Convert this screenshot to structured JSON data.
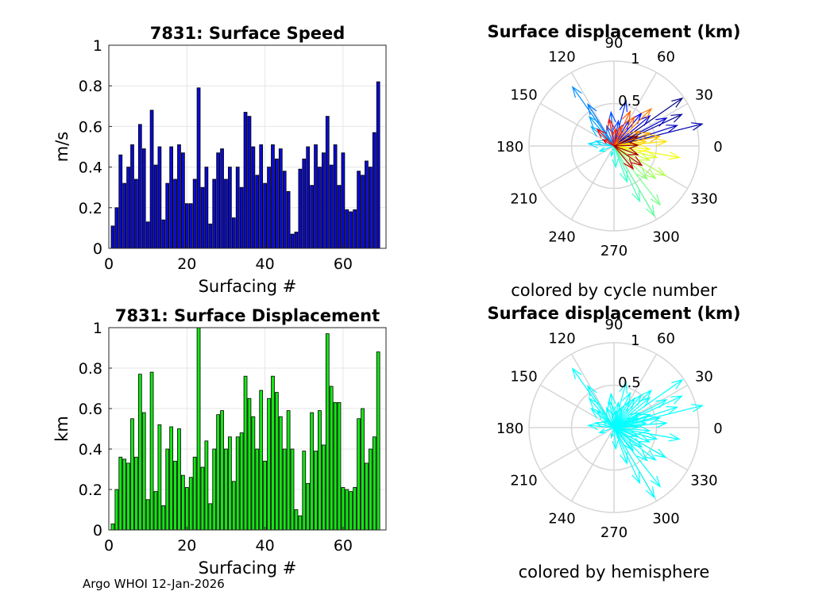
{
  "footer": "Argo WHOI 12-Jan-2026",
  "chart_data": [
    {
      "type": "bar",
      "title": "7831: Surface Speed",
      "xlabel": "Surfacing #",
      "ylabel": "m/s",
      "xlim": [
        0,
        71
      ],
      "ylim": [
        0,
        1
      ],
      "xticks": [
        "0",
        "20",
        "40",
        "60"
      ],
      "yticks": [
        "0",
        "0.2",
        "0.4",
        "0.6",
        "0.8",
        "1"
      ],
      "grid": true,
      "bar_color": "#0a0ad2",
      "values": [
        0.11,
        0.2,
        0.46,
        0.32,
        0.4,
        0.51,
        0.34,
        0.61,
        0.49,
        0.13,
        0.68,
        0.41,
        0.5,
        0.14,
        0.32,
        0.5,
        0.34,
        0.51,
        0.47,
        0.22,
        0.22,
        0.34,
        0.79,
        0.3,
        0.4,
        0.12,
        0.34,
        0.47,
        0.49,
        0.34,
        0.4,
        0.15,
        0.4,
        0.3,
        0.67,
        0.65,
        0.5,
        0.36,
        0.51,
        0.32,
        0.4,
        0.51,
        0.44,
        0.49,
        0.38,
        0.28,
        0.07,
        0.08,
        0.39,
        0.44,
        0.5,
        0.31,
        0.51,
        0.4,
        0.47,
        0.65,
        0.41,
        0.51,
        0.31,
        0.47,
        0.19,
        0.18,
        0.19,
        0.38,
        0.36,
        0.43,
        0.4,
        0.57,
        0.82
      ]
    },
    {
      "type": "bar",
      "title": "7831: Surface Displacement",
      "xlabel": "Surfacing #",
      "ylabel": "km",
      "xlim": [
        0,
        71
      ],
      "ylim": [
        0,
        1
      ],
      "xticks": [
        "0",
        "20",
        "40",
        "60"
      ],
      "yticks": [
        "0",
        "0.2",
        "0.4",
        "0.6",
        "0.8",
        "1"
      ],
      "grid": true,
      "bar_color": "#14e614",
      "values": [
        0.03,
        0.2,
        0.36,
        0.35,
        0.33,
        0.55,
        0.36,
        0.77,
        0.58,
        0.15,
        0.78,
        0.19,
        0.52,
        0.12,
        0.4,
        0.51,
        0.34,
        0.5,
        0.27,
        0.21,
        0.26,
        0.36,
        1.0,
        0.31,
        0.44,
        0.13,
        0.4,
        0.57,
        0.59,
        0.4,
        0.46,
        0.24,
        0.46,
        0.48,
        0.76,
        0.65,
        0.56,
        0.4,
        0.69,
        0.34,
        0.65,
        0.76,
        0.68,
        0.56,
        0.4,
        0.59,
        0.4,
        0.1,
        0.07,
        0.39,
        0.23,
        0.58,
        0.39,
        0.59,
        0.42,
        0.97,
        0.71,
        0.63,
        0.63,
        0.21,
        0.2,
        0.19,
        0.21,
        0.55,
        0.6,
        0.33,
        0.4,
        0.46,
        0.88
      ]
    },
    {
      "type": "polar",
      "title": "Surface displacement (km)",
      "subtitle": "colored by cycle number",
      "rlim": [
        0,
        1
      ],
      "rticks": [
        "0.5",
        "1"
      ],
      "angle_labels": [
        "0",
        "30",
        "60",
        "90",
        "120",
        "150",
        "180",
        "210",
        "240",
        "270",
        "300",
        "330"
      ],
      "colormap": "jet",
      "vectors": [
        {
          "angle": 35,
          "r": 0.98
        },
        {
          "angle": 25,
          "r": 0.88
        },
        {
          "angle": 14,
          "r": 1.07
        },
        {
          "angle": 18,
          "r": 0.78
        },
        {
          "angle": 28,
          "r": 0.7
        },
        {
          "angle": 40,
          "r": 0.55
        },
        {
          "angle": 50,
          "r": 0.5
        },
        {
          "angle": 60,
          "r": 0.35
        },
        {
          "angle": 75,
          "r": 0.55
        },
        {
          "angle": 80,
          "r": 0.3
        },
        {
          "angle": 95,
          "r": 0.4
        },
        {
          "angle": 110,
          "r": 0.25
        },
        {
          "angle": 122,
          "r": 0.58
        },
        {
          "angle": 125,
          "r": 0.85
        },
        {
          "angle": 130,
          "r": 0.45
        },
        {
          "angle": 140,
          "r": 0.35
        },
        {
          "angle": 165,
          "r": 0.22
        },
        {
          "angle": 175,
          "r": 0.3
        },
        {
          "angle": 200,
          "r": 0.18
        },
        {
          "angle": 255,
          "r": 0.12
        },
        {
          "angle": 275,
          "r": 0.25
        },
        {
          "angle": 290,
          "r": 0.45
        },
        {
          "angle": 295,
          "r": 0.72
        },
        {
          "angle": 300,
          "r": 0.95
        },
        {
          "angle": 308,
          "r": 0.88
        },
        {
          "angle": 315,
          "r": 0.55
        },
        {
          "angle": 322,
          "r": 0.62
        },
        {
          "angle": 330,
          "r": 0.7
        },
        {
          "angle": 338,
          "r": 0.45
        },
        {
          "angle": 345,
          "r": 0.52
        },
        {
          "angle": 350,
          "r": 0.78
        },
        {
          "angle": 355,
          "r": 0.42
        },
        {
          "angle": 5,
          "r": 0.62
        },
        {
          "angle": 8,
          "r": 0.38
        },
        {
          "angle": 12,
          "r": 0.55
        },
        {
          "angle": 20,
          "r": 0.45
        },
        {
          "angle": 30,
          "r": 0.35
        },
        {
          "angle": 45,
          "r": 0.62
        },
        {
          "angle": 55,
          "r": 0.42
        },
        {
          "angle": 65,
          "r": 0.45
        },
        {
          "angle": 70,
          "r": 0.25
        },
        {
          "angle": 85,
          "r": 0.2
        },
        {
          "angle": 100,
          "r": 0.32
        },
        {
          "angle": 135,
          "r": 0.28
        },
        {
          "angle": 150,
          "r": 0.15
        },
        {
          "angle": 310,
          "r": 0.35
        },
        {
          "angle": 325,
          "r": 0.4
        },
        {
          "angle": 340,
          "r": 0.3
        },
        {
          "angle": 2,
          "r": 0.28
        },
        {
          "angle": 22,
          "r": 0.3
        }
      ]
    },
    {
      "type": "polar",
      "title": "Surface displacement (km)",
      "subtitle": "colored by hemisphere",
      "rlim": [
        0,
        1
      ],
      "rticks": [
        "0.5",
        "1"
      ],
      "angle_labels": [
        "0",
        "30",
        "60",
        "90",
        "120",
        "150",
        "180",
        "210",
        "240",
        "270",
        "300",
        "330"
      ],
      "color": "#00ffff",
      "vectors": [
        {
          "angle": 35,
          "r": 0.98
        },
        {
          "angle": 25,
          "r": 0.88
        },
        {
          "angle": 14,
          "r": 1.07
        },
        {
          "angle": 18,
          "r": 0.78
        },
        {
          "angle": 28,
          "r": 0.7
        },
        {
          "angle": 40,
          "r": 0.55
        },
        {
          "angle": 50,
          "r": 0.5
        },
        {
          "angle": 60,
          "r": 0.35
        },
        {
          "angle": 75,
          "r": 0.55
        },
        {
          "angle": 80,
          "r": 0.3
        },
        {
          "angle": 95,
          "r": 0.4
        },
        {
          "angle": 110,
          "r": 0.25
        },
        {
          "angle": 122,
          "r": 0.58
        },
        {
          "angle": 125,
          "r": 0.85
        },
        {
          "angle": 130,
          "r": 0.45
        },
        {
          "angle": 140,
          "r": 0.35
        },
        {
          "angle": 165,
          "r": 0.22
        },
        {
          "angle": 175,
          "r": 0.3
        },
        {
          "angle": 200,
          "r": 0.18
        },
        {
          "angle": 255,
          "r": 0.12
        },
        {
          "angle": 275,
          "r": 0.25
        },
        {
          "angle": 290,
          "r": 0.45
        },
        {
          "angle": 295,
          "r": 0.72
        },
        {
          "angle": 300,
          "r": 0.95
        },
        {
          "angle": 308,
          "r": 0.88
        },
        {
          "angle": 315,
          "r": 0.55
        },
        {
          "angle": 322,
          "r": 0.62
        },
        {
          "angle": 330,
          "r": 0.7
        },
        {
          "angle": 338,
          "r": 0.45
        },
        {
          "angle": 345,
          "r": 0.52
        },
        {
          "angle": 350,
          "r": 0.78
        },
        {
          "angle": 355,
          "r": 0.42
        },
        {
          "angle": 5,
          "r": 0.62
        },
        {
          "angle": 8,
          "r": 0.38
        },
        {
          "angle": 12,
          "r": 0.55
        },
        {
          "angle": 20,
          "r": 0.45
        },
        {
          "angle": 30,
          "r": 0.35
        },
        {
          "angle": 45,
          "r": 0.62
        },
        {
          "angle": 55,
          "r": 0.42
        },
        {
          "angle": 65,
          "r": 0.45
        },
        {
          "angle": 70,
          "r": 0.25
        },
        {
          "angle": 85,
          "r": 0.2
        },
        {
          "angle": 100,
          "r": 0.32
        },
        {
          "angle": 135,
          "r": 0.28
        },
        {
          "angle": 150,
          "r": 0.15
        },
        {
          "angle": 310,
          "r": 0.35
        },
        {
          "angle": 325,
          "r": 0.4
        },
        {
          "angle": 340,
          "r": 0.3
        },
        {
          "angle": 2,
          "r": 0.28
        },
        {
          "angle": 22,
          "r": 0.3
        }
      ]
    }
  ]
}
